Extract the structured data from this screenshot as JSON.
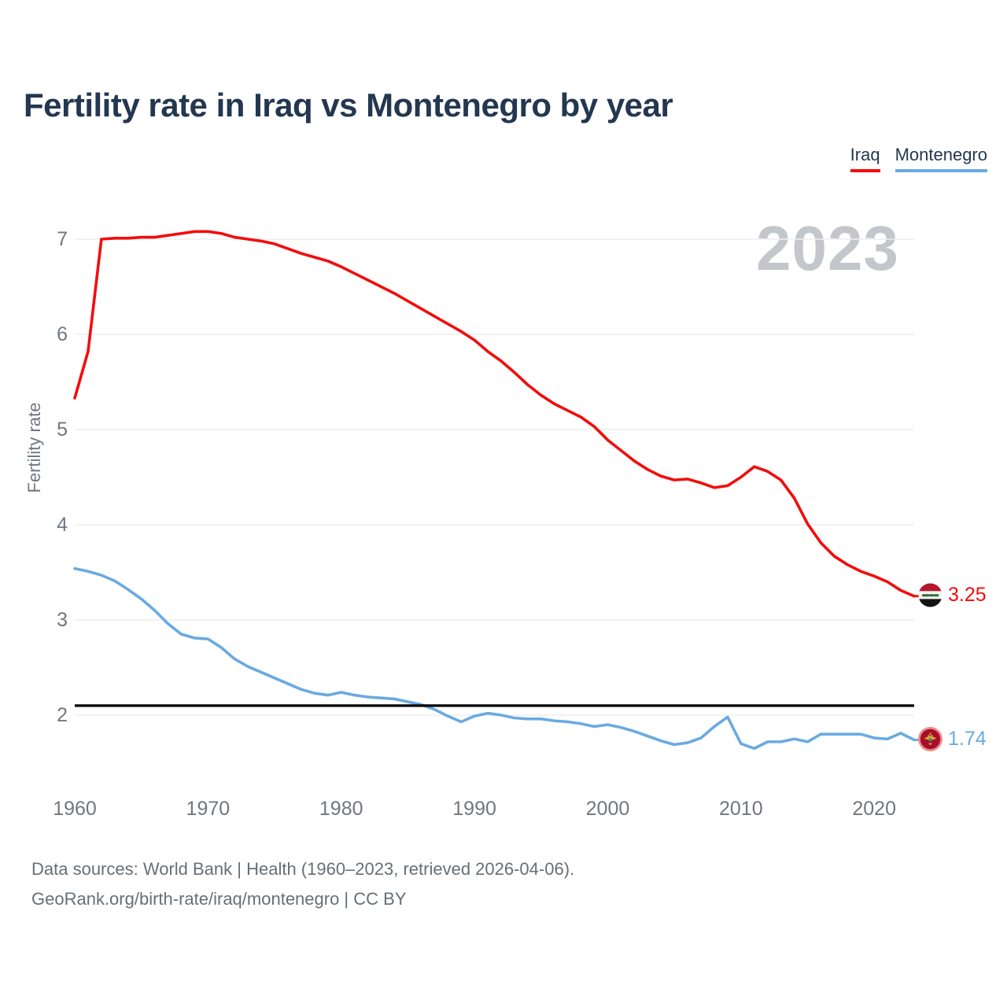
{
  "title": "Fertility rate in Iraq vs Montenegro by year",
  "watermark": "2023",
  "legend": {
    "items": [
      {
        "label": "Iraq",
        "color": "#f20d0d"
      },
      {
        "label": "Montenegro",
        "color": "#6aaae2"
      }
    ]
  },
  "y_axis": {
    "label": "Fertility rate",
    "ticks": [
      "7",
      "6",
      "5",
      "4",
      "3",
      "2"
    ]
  },
  "x_axis": {
    "ticks": [
      "1960",
      "1970",
      "1980",
      "1990",
      "2000",
      "2010",
      "2020"
    ]
  },
  "end_labels": {
    "iraq": "3.25",
    "montenegro": "1.74"
  },
  "footer": {
    "line1": "Data sources: World Bank | Health (1960–2023, retrieved 2026-04-06).",
    "line2": "GeoRank.org/birth-rate/iraq/montenegro | CC BY"
  },
  "chart_data": {
    "type": "line",
    "title": "Fertility rate in Iraq vs Montenegro by year",
    "xlabel": "",
    "ylabel": "Fertility rate",
    "x_range": [
      1960,
      2023
    ],
    "x_step": 1,
    "ylim": [
      1.4,
      7.5
    ],
    "grid": "horizontal",
    "legend_position": "top-right",
    "reference_line": {
      "value": 2.1,
      "color": "#0a0a0a"
    },
    "series": [
      {
        "name": "Iraq",
        "color": "#f20d0d",
        "final_value": 3.25,
        "values": [
          5.33,
          5.82,
          7.0,
          7.01,
          7.01,
          7.02,
          7.02,
          7.04,
          7.06,
          7.08,
          7.08,
          7.06,
          7.02,
          7.0,
          6.98,
          6.95,
          6.9,
          6.85,
          6.81,
          6.77,
          6.71,
          6.64,
          6.57,
          6.5,
          6.43,
          6.35,
          6.27,
          6.19,
          6.11,
          6.03,
          5.94,
          5.82,
          5.72,
          5.6,
          5.47,
          5.36,
          5.27,
          5.2,
          5.13,
          5.03,
          4.89,
          4.78,
          4.67,
          4.58,
          4.51,
          4.47,
          4.48,
          4.44,
          4.39,
          4.41,
          4.5,
          4.61,
          4.56,
          4.47,
          4.28,
          4.01,
          3.81,
          3.67,
          3.58,
          3.51,
          3.46,
          3.4,
          3.31,
          3.25
        ]
      },
      {
        "name": "Montenegro",
        "color": "#6aaae2",
        "final_value": 1.74,
        "values": [
          3.54,
          3.51,
          3.47,
          3.41,
          3.32,
          3.22,
          3.1,
          2.96,
          2.85,
          2.81,
          2.8,
          2.71,
          2.59,
          2.51,
          2.45,
          2.39,
          2.33,
          2.27,
          2.23,
          2.21,
          2.24,
          2.21,
          2.19,
          2.18,
          2.17,
          2.14,
          2.11,
          2.06,
          1.99,
          1.93,
          1.99,
          2.02,
          2.0,
          1.97,
          1.96,
          1.96,
          1.94,
          1.93,
          1.91,
          1.88,
          1.9,
          1.87,
          1.83,
          1.78,
          1.73,
          1.69,
          1.71,
          1.76,
          1.88,
          1.98,
          1.7,
          1.65,
          1.72,
          1.72,
          1.75,
          1.72,
          1.8,
          1.8,
          1.8,
          1.8,
          1.76,
          1.75,
          1.81,
          1.74
        ]
      }
    ]
  }
}
